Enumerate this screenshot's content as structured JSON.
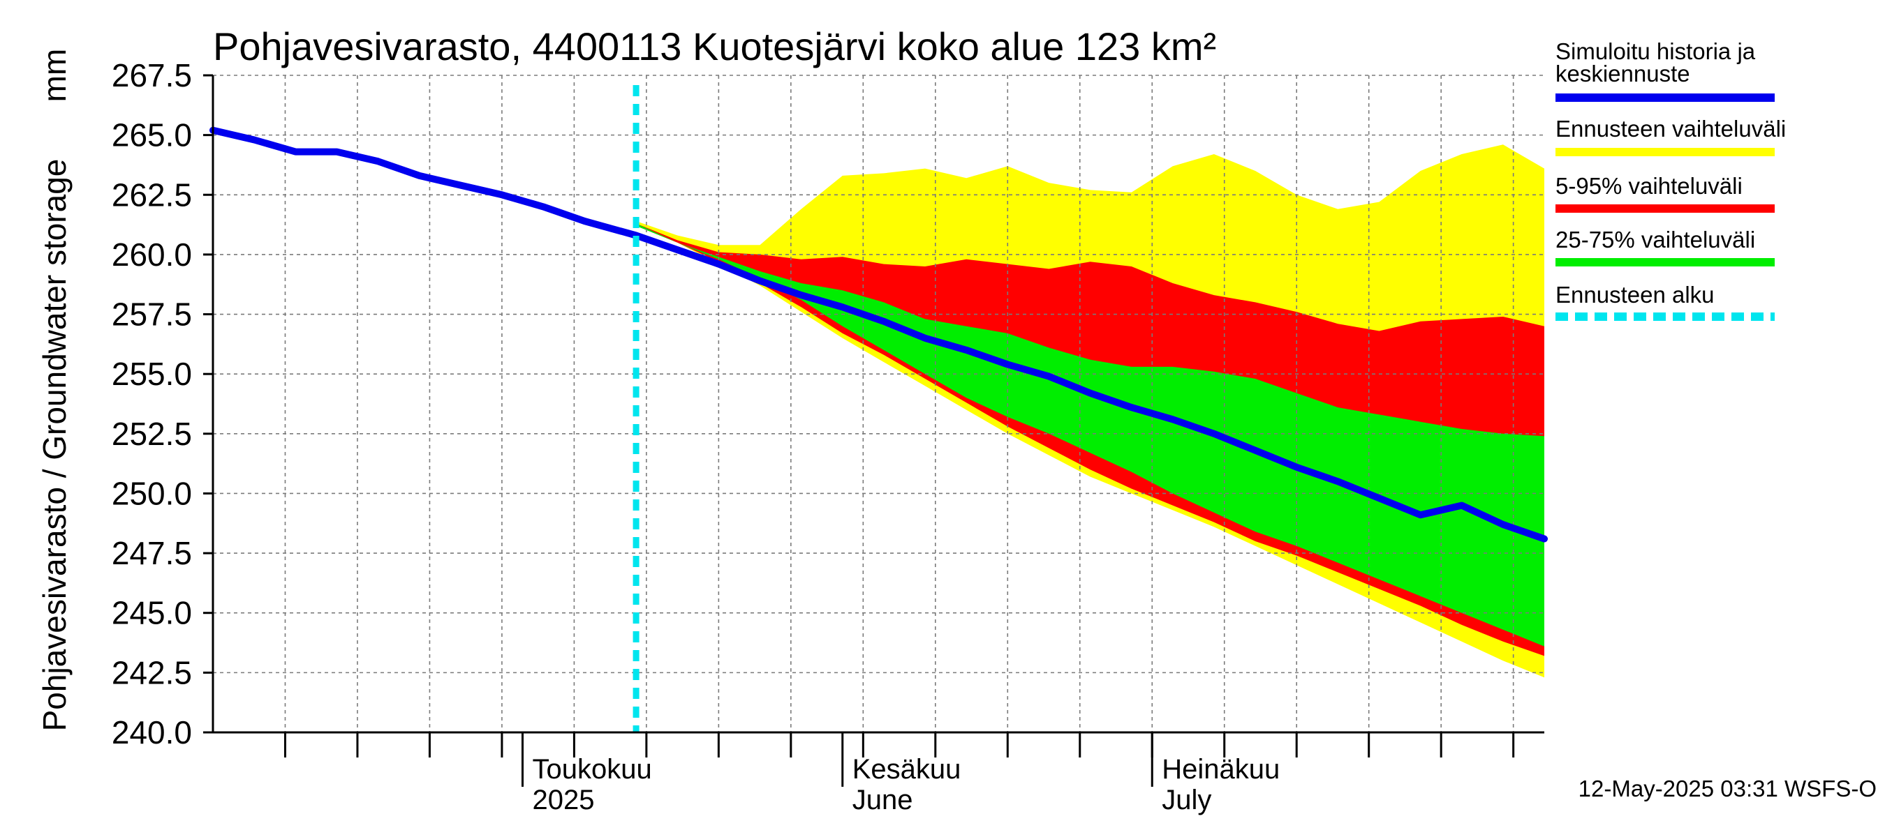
{
  "chart_data": {
    "type": "area",
    "title": "Pohjavesivarasto, 4400113 Kuotesjärvi koko alue 123 km²",
    "ylabel": "Pohjavesivarasto / Groundwater storage",
    "yunit": "mm",
    "ylim": [
      240.0,
      267.5
    ],
    "yticks": [
      "240.0",
      "242.5",
      "245.0",
      "247.5",
      "250.0",
      "252.5",
      "255.0",
      "257.5",
      "260.0",
      "262.5",
      "265.0",
      "267.5"
    ],
    "xlim": [
      "2025-04-01",
      "2025-08-08"
    ],
    "grid": true,
    "month_labels": [
      {
        "line1": "Toukokuu",
        "line2": "2025",
        "date": "2025-05-01"
      },
      {
        "line1": "Kesäkuu",
        "line2": "June",
        "date": "2025-06-01"
      },
      {
        "line1": "Heinäkuu",
        "line2": "July",
        "date": "2025-07-01"
      }
    ],
    "forecast_start": "2025-05-12",
    "x": [
      "2025-04-01",
      "2025-04-05",
      "2025-04-09",
      "2025-04-13",
      "2025-04-17",
      "2025-04-21",
      "2025-04-25",
      "2025-04-29",
      "2025-05-03",
      "2025-05-07",
      "2025-05-12",
      "2025-05-16",
      "2025-05-20",
      "2025-05-24",
      "2025-05-28",
      "2025-06-01",
      "2025-06-05",
      "2025-06-09",
      "2025-06-13",
      "2025-06-17",
      "2025-06-21",
      "2025-06-25",
      "2025-06-29",
      "2025-07-03",
      "2025-07-07",
      "2025-07-11",
      "2025-07-15",
      "2025-07-19",
      "2025-07-23",
      "2025-07-27",
      "2025-07-31",
      "2025-08-04",
      "2025-08-08"
    ],
    "series": [
      {
        "name": "Simuloitu historia ja keskiennuste",
        "color": "#0000ee",
        "values": [
          265.2,
          264.8,
          264.3,
          264.3,
          263.9,
          263.3,
          262.9,
          262.5,
          262.0,
          261.4,
          260.8,
          260.2,
          259.6,
          258.9,
          258.3,
          257.8,
          257.2,
          256.5,
          256.0,
          255.4,
          254.9,
          254.2,
          253.6,
          253.1,
          252.5,
          251.8,
          251.1,
          250.5,
          249.8,
          249.1,
          249.5,
          248.7,
          248.1
        ]
      },
      {
        "name": "Ennusteen vaihteluväli",
        "color": "#ffff00",
        "upper": [
          null,
          null,
          null,
          null,
          null,
          null,
          null,
          null,
          null,
          null,
          261.4,
          260.8,
          260.4,
          260.4,
          261.9,
          263.3,
          263.4,
          263.6,
          263.2,
          263.7,
          263.0,
          262.7,
          262.6,
          263.7,
          264.2,
          263.5,
          262.5,
          261.9,
          262.2,
          263.5,
          264.2,
          264.6,
          263.6
        ],
        "lower": [
          null,
          null,
          null,
          null,
          null,
          null,
          null,
          null,
          null,
          null,
          261.2,
          260.5,
          259.6,
          258.7,
          257.6,
          256.5,
          255.5,
          254.5,
          253.5,
          252.5,
          251.6,
          250.7,
          250.0,
          249.3,
          248.6,
          247.8,
          247.0,
          246.2,
          245.4,
          244.6,
          243.8,
          243.0,
          242.3
        ]
      },
      {
        "name": "5-95% vaihteluväli",
        "color": "#ff0000",
        "upper": [
          null,
          null,
          null,
          null,
          null,
          null,
          null,
          null,
          null,
          null,
          261.3,
          260.6,
          260.1,
          260.0,
          259.8,
          259.9,
          259.6,
          259.5,
          259.8,
          259.6,
          259.4,
          259.7,
          259.5,
          258.8,
          258.3,
          258.0,
          257.6,
          257.1,
          256.8,
          257.2,
          257.3,
          257.4,
          257.0
        ],
        "lower": [
          null,
          null,
          null,
          null,
          null,
          null,
          null,
          null,
          null,
          null,
          261.2,
          260.5,
          259.7,
          258.8,
          257.8,
          256.7,
          255.8,
          254.8,
          253.8,
          252.8,
          251.9,
          251.0,
          250.2,
          249.5,
          248.8,
          248.0,
          247.4,
          246.7,
          246.0,
          245.3,
          244.5,
          243.8,
          243.2
        ]
      },
      {
        "name": "25-75% vaihteluväli",
        "color": "#00ee00",
        "upper": [
          null,
          null,
          null,
          null,
          null,
          null,
          null,
          null,
          null,
          null,
          261.3,
          260.5,
          259.9,
          259.3,
          258.8,
          258.5,
          258.0,
          257.3,
          257.0,
          256.7,
          256.1,
          255.6,
          255.3,
          255.3,
          255.1,
          254.8,
          254.2,
          253.6,
          253.3,
          253.0,
          252.7,
          252.5,
          252.4
        ],
        "lower": [
          null,
          null,
          null,
          null,
          null,
          null,
          null,
          null,
          null,
          null,
          261.2,
          260.5,
          259.8,
          259.0,
          258.1,
          257.0,
          256.0,
          255.0,
          254.0,
          253.2,
          252.5,
          251.7,
          250.9,
          250.0,
          249.2,
          248.4,
          247.8,
          247.1,
          246.4,
          245.7,
          245.0,
          244.3,
          243.6
        ]
      },
      {
        "name": "Ennusteen alku",
        "color": "#00e5ee"
      }
    ]
  },
  "legend": [
    {
      "label": "Simuloitu historia ja\nkeskiennuste",
      "color": "#0000ee",
      "style": "solid"
    },
    {
      "label": "Ennusteen vaihteluväli",
      "color": "#ffff00",
      "style": "solid"
    },
    {
      "label": "5-95% vaihteluväli",
      "color": "#ff0000",
      "style": "solid"
    },
    {
      "label": "25-75% vaihteluväli",
      "color": "#00ee00",
      "style": "solid"
    },
    {
      "label": "Ennusteen alku",
      "color": "#00e5ee",
      "style": "dashed"
    }
  ],
  "footer": "12-May-2025 03:31 WSFS-O"
}
